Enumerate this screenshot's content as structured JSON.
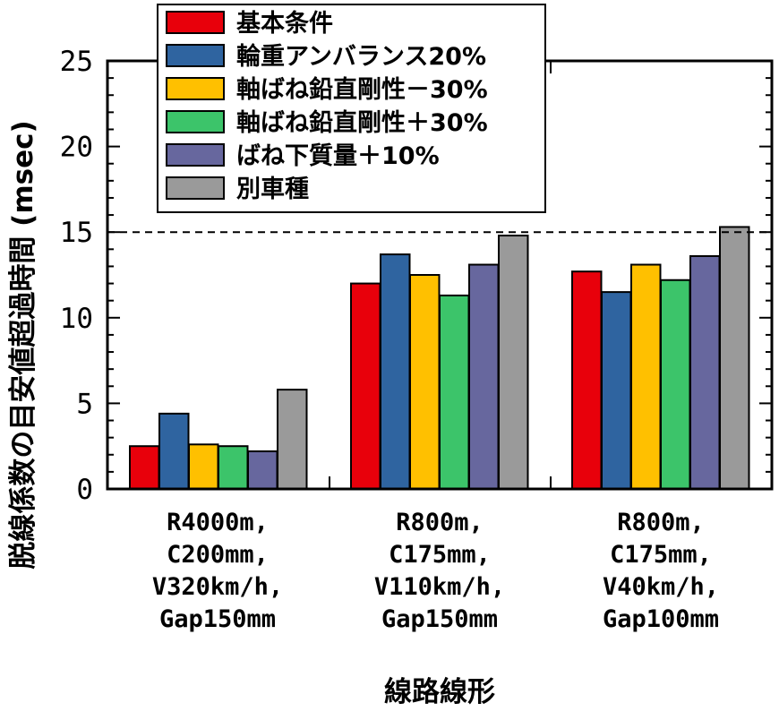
{
  "chart_data": {
    "type": "bar",
    "ylabel": "脱線係数の目安値超過時間 (msec)",
    "xlabel": "線路線形",
    "ylim": [
      0,
      25
    ],
    "yticks": [
      "0",
      "5",
      "10",
      "15",
      "20",
      "25"
    ],
    "threshold": 15,
    "legend_position": "top-left",
    "categories": [
      [
        "R4000m,",
        "C200mm,",
        "V320km/h,",
        "Gap150mm"
      ],
      [
        "R800m,",
        "C175mm,",
        "V110km/h,",
        "Gap150mm"
      ],
      [
        "R800m,",
        "C175mm,",
        "V40km/h,",
        "Gap100mm"
      ]
    ],
    "series": [
      {
        "name": "基本条件",
        "color": "#e8000b",
        "values": [
          2.5,
          12.0,
          12.7
        ]
      },
      {
        "name": "輪重アンバランス20%",
        "color": "#2f64a0",
        "values": [
          4.4,
          13.7,
          11.5
        ]
      },
      {
        "name": "軸ばね鉛直剛性－30%",
        "color": "#ffc000",
        "values": [
          2.6,
          12.5,
          13.1
        ]
      },
      {
        "name": "軸ばね鉛直剛性＋30%",
        "color": "#3cc46a",
        "values": [
          2.5,
          11.3,
          12.2
        ]
      },
      {
        "name": "ばね下質量＋10%",
        "color": "#67679e",
        "values": [
          2.2,
          13.1,
          13.6
        ]
      },
      {
        "name": "別車種",
        "color": "#9a9a9a",
        "values": [
          5.8,
          14.8,
          15.3
        ]
      }
    ]
  }
}
